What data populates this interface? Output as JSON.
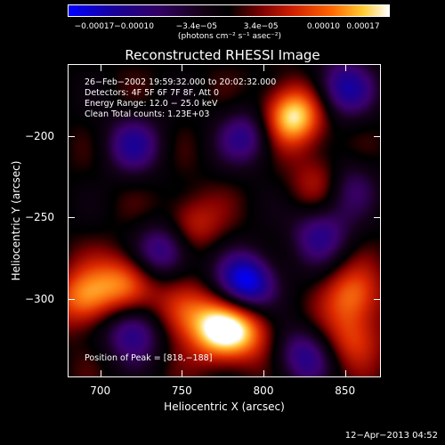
{
  "chart_data": {
    "type": "heatmap",
    "title": "Reconstructed RHESSI Image",
    "xlabel": "Heliocentric X (arcsec)",
    "ylabel": "Heliocentric Y (arcsec)",
    "xlim": [
      680,
      872
    ],
    "ylim": [
      -348,
      -156
    ],
    "xticks": [
      {
        "value": 700,
        "label": "700"
      },
      {
        "value": 750,
        "label": "750"
      },
      {
        "value": 800,
        "label": "800"
      },
      {
        "value": 850,
        "label": "850"
      }
    ],
    "yticks": [
      {
        "value": -200,
        "label": "−200"
      },
      {
        "value": -250,
        "label": "−250"
      },
      {
        "value": -300,
        "label": "−300"
      }
    ],
    "colorbar": {
      "range": [
        -0.00017,
        0.00017
      ],
      "ticks": [
        "−0.00017",
        "−0.00010",
        "−3.4e−05",
        "3.4e−05",
        "0.00010",
        "0.00017"
      ],
      "units": "(photons cm⁻² s⁻¹ asec⁻²)"
    },
    "annotations": {
      "time": "26−Feb−2002 19:59:32.000 to 20:02:32.000",
      "detectors": "Detectors: 4F 5F 6F 7F 8F, Att 0",
      "energy": "Energy Range: 12.0 − 25.0 keV",
      "clean": "Clean     Total counts: 1.23E+03",
      "peak": "Position of Peak = [818,−188]"
    },
    "bright_sources": [
      {
        "x": 818,
        "y": -188,
        "value": 0.00017
      },
      {
        "x": 773,
        "y": -320,
        "value": 0.00015
      },
      {
        "x": 690,
        "y": -300,
        "value": 0.00012
      },
      {
        "x": 715,
        "y": -290,
        "value": 0.00011
      },
      {
        "x": 750,
        "y": -308,
        "value": 0.0001
      },
      {
        "x": 855,
        "y": -298,
        "value": 0.0001
      },
      {
        "x": 838,
        "y": -228,
        "value": 9e-05
      },
      {
        "x": 755,
        "y": -255,
        "value": 8e-05
      },
      {
        "x": 855,
        "y": -325,
        "value": 8e-05
      },
      {
        "x": 790,
        "y": -320,
        "value": 9e-05
      }
    ],
    "dark_sources": [
      {
        "x": 790,
        "y": -290,
        "value": -0.00017
      },
      {
        "x": 740,
        "y": -270,
        "value": -0.00012
      },
      {
        "x": 720,
        "y": -320,
        "value": -0.00012
      },
      {
        "x": 790,
        "y": -200,
        "value": -0.0001
      },
      {
        "x": 835,
        "y": -260,
        "value": -0.0001
      },
      {
        "x": 850,
        "y": -230,
        "value": -0.0001
      },
      {
        "x": 825,
        "y": -335,
        "value": -0.0001
      },
      {
        "x": 720,
        "y": -205,
        "value": -0.0001
      },
      {
        "x": 850,
        "y": -170,
        "value": -0.00012
      }
    ]
  },
  "timestamp": "12−Apr−2013 04:52"
}
